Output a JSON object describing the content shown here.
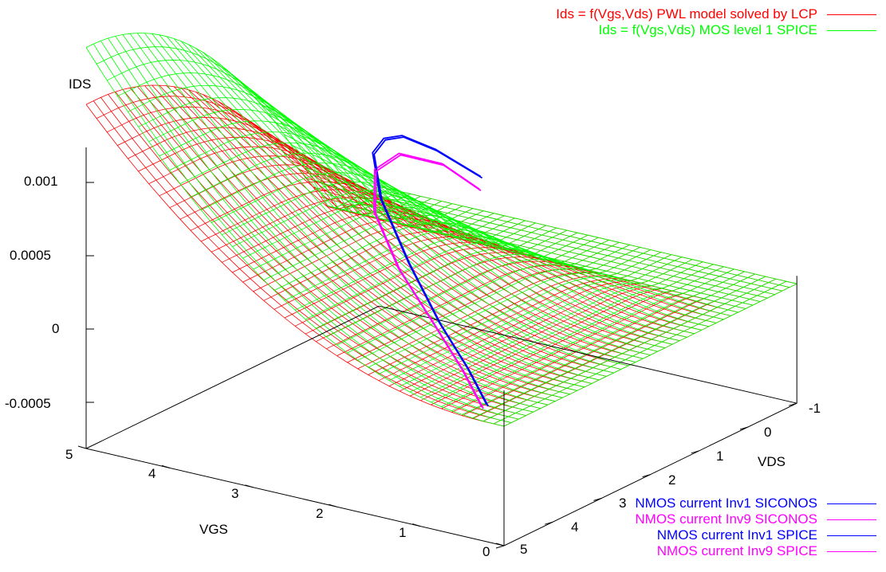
{
  "chart_data": {
    "type": "surface3d",
    "zlabel": "IDS",
    "xlabel": "VGS",
    "ylabel": "VDS",
    "z_ticks": [
      "0.001",
      "0.0005",
      "0",
      "-0.0005"
    ],
    "vgs_ticks": [
      "5",
      "4",
      "3",
      "2",
      "1",
      "0"
    ],
    "vds_ticks": [
      "-1",
      "0",
      "1",
      "2",
      "3",
      "4",
      "5"
    ],
    "vgs_range": [
      0,
      5
    ],
    "vds_range": [
      -1,
      5
    ],
    "zlim": [
      -0.0005,
      0.001
    ],
    "surface_series": [
      {
        "name": "Ids = f(Vgs,Vds) PWL model solved by LCP",
        "color": "#ff0000"
      },
      {
        "name": "Ids = f(Vgs,Vds) MOS level 1 SPICE",
        "color": "#00ff00"
      }
    ],
    "curve_series": [
      {
        "name": "NMOS current Inv1 SICONOS",
        "color": "#0000ff",
        "points": [
          {
            "vgs": 0.5,
            "vds": 4.5,
            "ids": 0.0
          },
          {
            "vgs": 1.2,
            "vds": 3.7,
            "ids": 3e-05
          },
          {
            "vgs": 2.0,
            "vds": 2.9,
            "ids": 0.0001
          },
          {
            "vgs": 2.9,
            "vds": 2.0,
            "ids": 0.00025
          },
          {
            "vgs": 3.7,
            "vds": 1.2,
            "ids": 0.00045
          },
          {
            "vgs": 4.2,
            "vds": 0.5,
            "ids": 0.00058
          },
          {
            "vgs": 4.3,
            "vds": 0.1,
            "ids": 0.0006
          },
          {
            "vgs": 4.2,
            "vds": -0.1,
            "ids": 0.0006
          },
          {
            "vgs": 3.8,
            "vds": -0.1,
            "ids": 0.00056
          },
          {
            "vgs": 3.2,
            "vds": 0.0,
            "ids": 0.00047
          }
        ]
      },
      {
        "name": "NMOS current Inv9 SICONOS",
        "color": "#ff00ff",
        "points": [
          {
            "vgs": 0.5,
            "vds": 4.6,
            "ids": 0.0
          },
          {
            "vgs": 1.2,
            "vds": 3.8,
            "ids": 3e-05
          },
          {
            "vgs": 2.0,
            "vds": 3.0,
            "ids": 0.0001
          },
          {
            "vgs": 2.9,
            "vds": 2.2,
            "ids": 0.00024
          },
          {
            "vgs": 3.6,
            "vds": 1.5,
            "ids": 0.00042
          },
          {
            "vgs": 4.0,
            "vds": 0.8,
            "ids": 0.00054
          },
          {
            "vgs": 4.0,
            "vds": 0.3,
            "ids": 0.00057
          },
          {
            "vgs": 3.6,
            "vds": 0.1,
            "ids": 0.00052
          },
          {
            "vgs": 3.1,
            "vds": 0.2,
            "ids": 0.00043
          }
        ]
      },
      {
        "name": "NMOS current Inv1 SPICE",
        "color": "#0000ff",
        "points": [
          {
            "vgs": 0.5,
            "vds": 4.5,
            "ids": 0.0
          },
          {
            "vgs": 1.2,
            "vds": 3.7,
            "ids": 3e-05
          },
          {
            "vgs": 2.0,
            "vds": 2.9,
            "ids": 0.0001
          },
          {
            "vgs": 2.9,
            "vds": 2.0,
            "ids": 0.00025
          },
          {
            "vgs": 3.7,
            "vds": 1.2,
            "ids": 0.00045
          },
          {
            "vgs": 4.2,
            "vds": 0.5,
            "ids": 0.00058
          },
          {
            "vgs": 4.3,
            "vds": 0.1,
            "ids": 0.0006
          },
          {
            "vgs": 4.2,
            "vds": -0.1,
            "ids": 0.0006
          },
          {
            "vgs": 3.8,
            "vds": -0.1,
            "ids": 0.00056
          },
          {
            "vgs": 3.2,
            "vds": 0.0,
            "ids": 0.00047
          }
        ]
      },
      {
        "name": "NMOS current Inv9 SPICE",
        "color": "#ff00ff",
        "points": [
          {
            "vgs": 0.5,
            "vds": 4.6,
            "ids": 0.0
          },
          {
            "vgs": 1.2,
            "vds": 3.8,
            "ids": 3e-05
          },
          {
            "vgs": 2.0,
            "vds": 3.0,
            "ids": 0.0001
          },
          {
            "vgs": 2.9,
            "vds": 2.2,
            "ids": 0.00024
          },
          {
            "vgs": 3.6,
            "vds": 1.5,
            "ids": 0.00042
          },
          {
            "vgs": 4.0,
            "vds": 0.8,
            "ids": 0.00054
          },
          {
            "vgs": 4.0,
            "vds": 0.3,
            "ids": 0.00057
          },
          {
            "vgs": 3.6,
            "vds": 0.1,
            "ids": 0.00052
          },
          {
            "vgs": 3.1,
            "vds": 0.2,
            "ids": 0.00043
          }
        ]
      }
    ],
    "grid": true,
    "legend_placement": [
      "top-right",
      "bottom-right"
    ]
  }
}
